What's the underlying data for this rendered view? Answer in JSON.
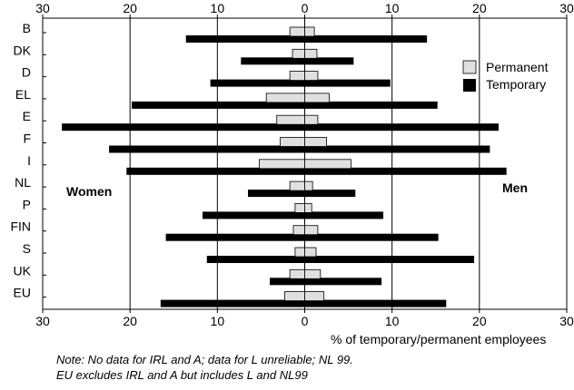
{
  "chart_data": {
    "type": "bar",
    "orientation": "horizontal-diverging",
    "categories": [
      "B",
      "DK",
      "D",
      "EL",
      "E",
      "F",
      "I",
      "NL",
      "P",
      "FIN",
      "S",
      "UK",
      "EU"
    ],
    "women": {
      "label": "Women",
      "series": [
        {
          "name": "Permanent",
          "values": [
            1.7,
            1.4,
            1.7,
            4.4,
            3.2,
            2.8,
            5.2,
            1.7,
            1.1,
            1.3,
            1.1,
            1.7,
            2.3
          ]
        },
        {
          "name": "Temporary",
          "values": [
            13.6,
            7.3,
            10.8,
            19.8,
            27.8,
            22.4,
            20.4,
            6.5,
            11.7,
            15.9,
            11.2,
            4.0,
            16.5
          ]
        }
      ]
    },
    "men": {
      "label": "Men",
      "series": [
        {
          "name": "Permanent",
          "values": [
            1.1,
            1.4,
            1.5,
            2.8,
            1.5,
            2.5,
            5.3,
            0.9,
            0.8,
            1.5,
            1.3,
            1.8,
            2.2
          ]
        },
        {
          "name": "Temporary",
          "values": [
            14.0,
            5.6,
            9.8,
            15.2,
            22.2,
            21.2,
            23.1,
            5.8,
            9.0,
            15.3,
            19.4,
            8.8,
            16.2
          ]
        }
      ]
    },
    "xlim": [
      -30,
      30
    ],
    "xticks_top": [
      "30",
      "20",
      "10",
      "0",
      "10",
      "20",
      "30"
    ],
    "xticks_bottom": [
      "30",
      "20",
      "10",
      "0",
      "10",
      "20",
      "30"
    ],
    "xlabel": "% of temporary/permanent employees",
    "legend": {
      "position": "top-right",
      "entries": [
        {
          "name": "Permanent",
          "color": "#e0e0e0"
        },
        {
          "name": "Temporary",
          "color": "#000000"
        }
      ]
    },
    "grid": "vertical-at-10",
    "colors": {
      "permanent": "#e0e0e0",
      "temporary": "#000000",
      "gridline": "#000000"
    }
  },
  "notes": [
    "Note: No data for IRL and A; data for L unreliable; NL 99.",
    "EU excludes IRL and A but includes L and NL99"
  ]
}
